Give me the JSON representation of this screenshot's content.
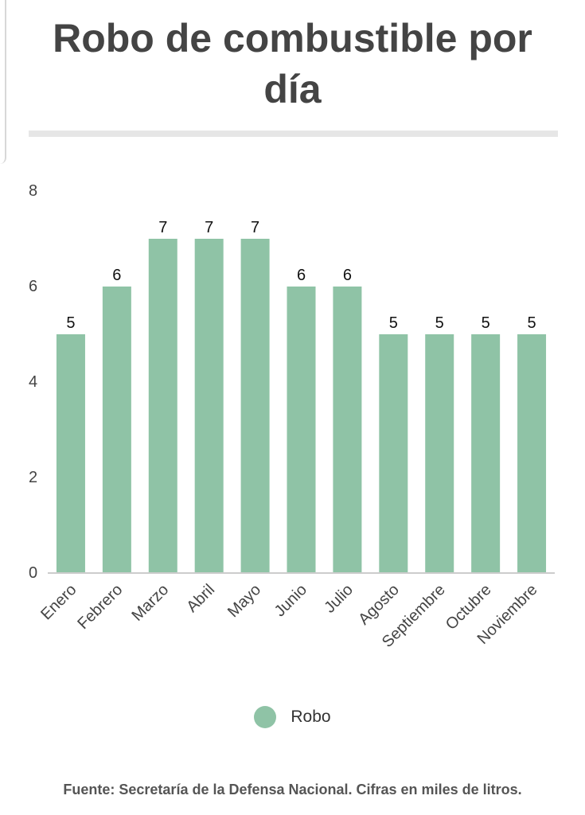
{
  "title": "Robo de combustible por día",
  "source": "Fuente: Secretaría de la Defensa Nacional. Cifras en miles de litros.",
  "colors": {
    "bar": "#8fc3a6",
    "axis": "#cccccc",
    "text": "#444444"
  },
  "chart_data": {
    "type": "bar",
    "title": "Robo de combustible por día",
    "xlabel": "",
    "ylabel": "",
    "categories": [
      "Enero",
      "Febrero",
      "Marzo",
      "Abril",
      "Mayo",
      "Junio",
      "Julio",
      "Agosto",
      "Septiembre",
      "Octubre",
      "Noviembre"
    ],
    "series": [
      {
        "name": "Robo",
        "values": [
          5,
          6,
          7,
          7,
          7,
          6,
          6,
          5,
          5,
          5,
          5
        ],
        "value_labels": [
          "5",
          "6",
          "7",
          "7",
          "7",
          "6",
          "6",
          "5",
          "5",
          "5",
          "5"
        ]
      }
    ],
    "ylim": [
      0,
      8
    ],
    "yticks": [
      0,
      2,
      4,
      6,
      8
    ],
    "ytick_labels": [
      "0",
      "2",
      "4",
      "6",
      "8"
    ],
    "grid": false,
    "legend": "bottom-center"
  }
}
